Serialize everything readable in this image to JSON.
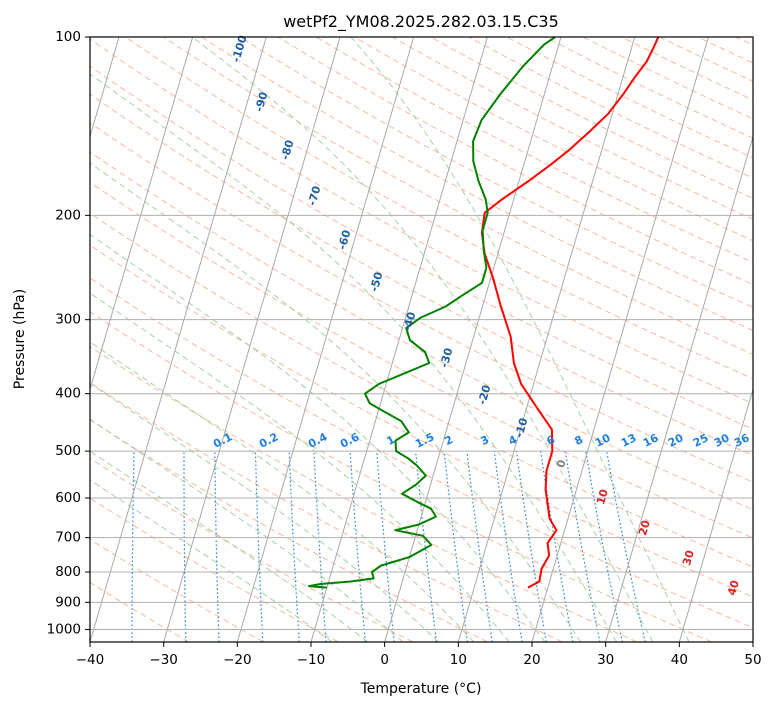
{
  "chart_data": {
    "type": "line",
    "title": "wetPf2_YM08.2025.282.03.15.C35",
    "xlabel": "Temperature (°C)",
    "ylabel": "Pressure (hPa)",
    "xlim": [
      -40,
      50
    ],
    "ylim": [
      1050,
      100
    ],
    "y_scale": "log",
    "grid": true,
    "x_ticks": [
      "−40",
      "−30",
      "−20",
      "−10",
      "0",
      "10",
      "20",
      "30",
      "40",
      "50"
    ],
    "y_ticks": [
      "100",
      "200",
      "300",
      "400",
      "500",
      "600",
      "700",
      "800",
      "900",
      "1000"
    ],
    "colors": {
      "temperature": "#ff0000",
      "dewpoint": "#008000",
      "dry_adiabat": "#ffa07a",
      "moist_adiabat": "#90c890",
      "mixing_ratio": "#1e7fdf",
      "isotherm_label": "#1f5f9f",
      "dry_label": "#d62728"
    },
    "series": [
      {
        "key": "temperature",
        "points": [
          [
            17.3,
            850
          ],
          [
            18.6,
            830
          ],
          [
            18.4,
            790
          ],
          [
            18.9,
            750
          ],
          [
            18.2,
            715
          ],
          [
            18.9,
            680
          ],
          [
            17.5,
            650
          ],
          [
            16.8,
            620
          ],
          [
            15.8,
            580
          ],
          [
            15.2,
            540
          ],
          [
            15.2,
            500
          ],
          [
            14.3,
            460
          ],
          [
            11.2,
            420
          ],
          [
            8.3,
            385
          ],
          [
            6.5,
            355
          ],
          [
            5.0,
            320
          ],
          [
            2.5,
            285
          ],
          [
            0.3,
            255
          ],
          [
            -1.8,
            232
          ],
          [
            -3.0,
            214
          ],
          [
            -3.4,
            198
          ],
          [
            -1.6,
            188
          ],
          [
            1.3,
            175
          ],
          [
            3.5,
            165
          ],
          [
            5.6,
            155
          ],
          [
            7.5,
            145
          ],
          [
            9.4,
            135
          ],
          [
            10.7,
            125
          ],
          [
            11.6,
            117
          ],
          [
            12.6,
            110
          ],
          [
            13.0,
            104
          ],
          [
            13.2,
            100
          ]
        ]
      },
      {
        "key": "dewpoint",
        "points": [
          [
            -10.0,
            850
          ],
          [
            -12.5,
            845
          ],
          [
            -11.0,
            838
          ],
          [
            -7.0,
            830
          ],
          [
            -4.0,
            820
          ],
          [
            -4.5,
            800
          ],
          [
            -3.5,
            780
          ],
          [
            0.0,
            755
          ],
          [
            2.5,
            720
          ],
          [
            1.0,
            695
          ],
          [
            -3.0,
            680
          ],
          [
            0.0,
            665
          ],
          [
            2.0,
            645
          ],
          [
            1.0,
            625
          ],
          [
            -1.0,
            610
          ],
          [
            -3.5,
            590
          ],
          [
            -2.0,
            570
          ],
          [
            -1.0,
            550
          ],
          [
            -2.5,
            530
          ],
          [
            -4.0,
            515
          ],
          [
            -6.0,
            500
          ],
          [
            -6.5,
            480
          ],
          [
            -5.0,
            465
          ],
          [
            -6.5,
            445
          ],
          [
            -9.0,
            430
          ],
          [
            -11.5,
            415
          ],
          [
            -12.5,
            400
          ],
          [
            -11.0,
            385
          ],
          [
            -8.0,
            370
          ],
          [
            -5.0,
            355
          ],
          [
            -6.0,
            340
          ],
          [
            -8.5,
            325
          ],
          [
            -9.5,
            310
          ],
          [
            -8.0,
            298
          ],
          [
            -5.0,
            285
          ],
          [
            -3.5,
            275
          ],
          [
            -1.0,
            260
          ],
          [
            -1.0,
            245
          ],
          [
            -2.0,
            230
          ],
          [
            -3.0,
            212
          ],
          [
            -3.0,
            198
          ],
          [
            -3.8,
            188
          ],
          [
            -5.5,
            175
          ],
          [
            -7.0,
            162
          ],
          [
            -7.8,
            150
          ],
          [
            -7.5,
            138
          ],
          [
            -6.0,
            125
          ],
          [
            -4.0,
            112
          ],
          [
            -2.0,
            103
          ],
          [
            -0.8,
            100
          ]
        ]
      }
    ],
    "isotherm_labels": [
      "-100",
      "-90",
      "-80",
      "-70",
      "-60",
      "-50",
      "-40",
      "-30",
      "-20",
      "-10",
      "0",
      "10",
      "20",
      "30",
      "40"
    ],
    "mixing_ratio_labels": [
      "0.1",
      "0.2",
      "0.4",
      "0.6",
      "1",
      "1.5",
      "2",
      "3",
      "4",
      "6",
      "8",
      "10",
      "13",
      "16",
      "20",
      "25",
      "30",
      "36"
    ]
  }
}
